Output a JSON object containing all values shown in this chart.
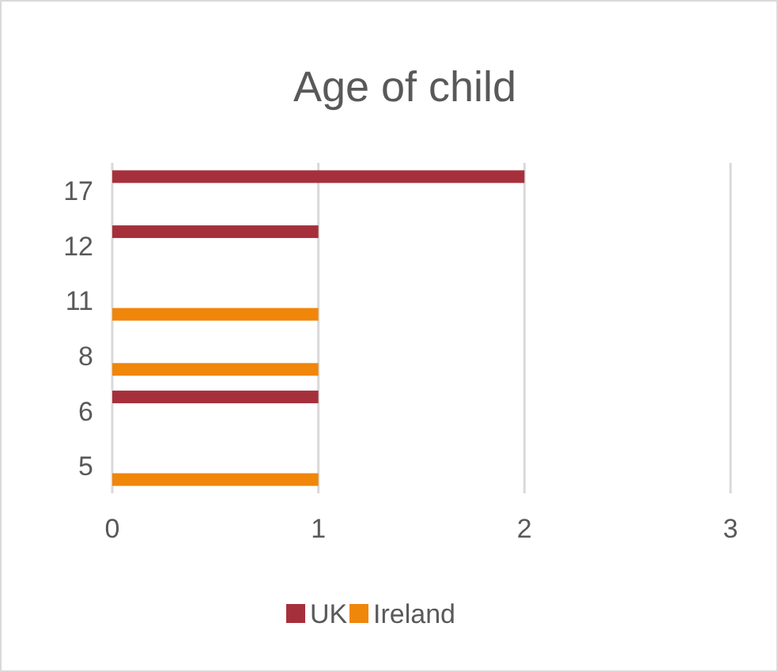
{
  "chart_data": {
    "type": "bar",
    "orientation": "horizontal",
    "title": "Age of child",
    "categories": [
      "17",
      "12",
      "11",
      "8",
      "6",
      "5"
    ],
    "series": [
      {
        "name": "UK",
        "color": "#a5303c",
        "values": [
          2,
          1,
          null,
          null,
          1,
          null
        ]
      },
      {
        "name": "Ireland",
        "color": "#f0860a",
        "values": [
          null,
          null,
          1,
          1,
          null,
          1
        ]
      }
    ],
    "xlim": [
      0,
      3
    ],
    "xticks": [
      0,
      1,
      2,
      3
    ],
    "grid": "x",
    "legend": "bottom"
  }
}
